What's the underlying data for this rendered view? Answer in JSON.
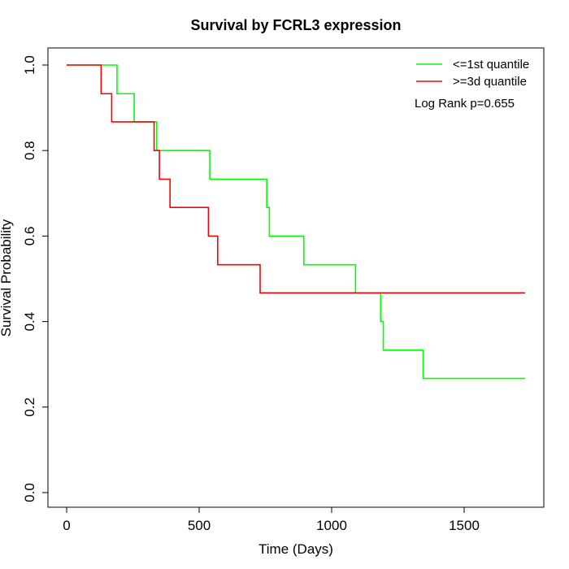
{
  "chart_data": {
    "type": "line",
    "title": "Survival by FCRL3 expression",
    "xlabel": "Time (Days)",
    "ylabel": "Survival Probability",
    "xlim": [
      0,
      1730
    ],
    "ylim": [
      0,
      1
    ],
    "x_ticks": [
      0,
      500,
      1000,
      1500
    ],
    "x_tick_labels": [
      "0",
      "500",
      "1000",
      "1500"
    ],
    "y_ticks": [
      0,
      0.2,
      0.4,
      0.6,
      0.8,
      1
    ],
    "y_tick_labels": [
      "0.0",
      "0.2",
      "0.4",
      "0.6",
      "0.8",
      "1.0"
    ],
    "grid": false,
    "legend_position": "top-right",
    "annotation": "Log Rank p=0.655",
    "series": [
      {
        "name": "<=1st quantile",
        "color": "#00ff00",
        "x": [
          0,
          190,
          255,
          340,
          540,
          755,
          765,
          895,
          1090,
          1185,
          1195,
          1345,
          1730
        ],
        "y": [
          1.0,
          0.933,
          0.867,
          0.8,
          0.733,
          0.667,
          0.6,
          0.533,
          0.467,
          0.4,
          0.333,
          0.267,
          0.267
        ]
      },
      {
        "name": ">=3d quantile",
        "color": "#ff0000",
        "x": [
          0,
          130,
          170,
          330,
          350,
          390,
          535,
          570,
          730,
          1730
        ],
        "y": [
          1.0,
          0.933,
          0.867,
          0.8,
          0.733,
          0.667,
          0.6,
          0.533,
          0.467,
          0.467
        ]
      }
    ]
  }
}
